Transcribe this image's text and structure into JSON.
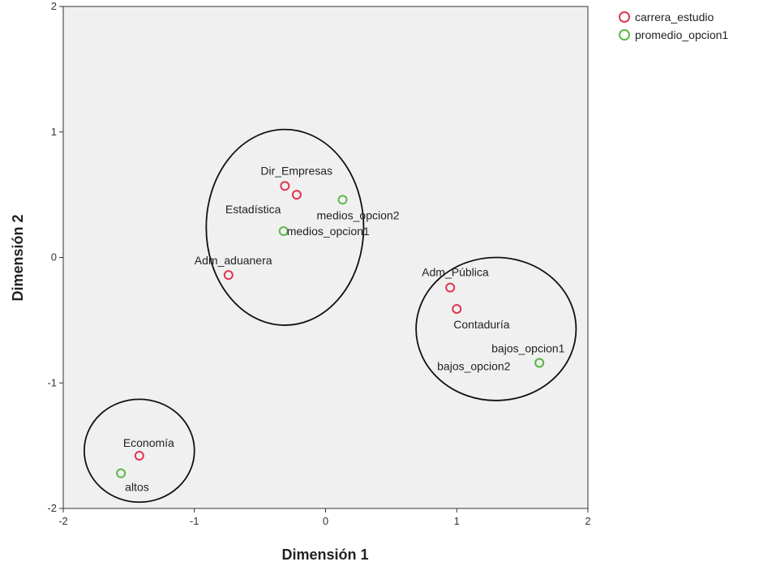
{
  "chart_data": {
    "type": "scatter",
    "xlabel": "Dimensión 1",
    "ylabel": "Dimensión 2",
    "xlim": [
      -2,
      2
    ],
    "ylim": [
      -2,
      2
    ],
    "xticks": [
      -2,
      -1,
      0,
      1,
      2
    ],
    "yticks": [
      -2,
      -1,
      0,
      1,
      2
    ],
    "grid": false,
    "legend_position": "top-right",
    "series": [
      {
        "name": "carrera_estudio",
        "color": "#e0354f",
        "points": [
          {
            "label": "Dir_Empresas",
            "x": -0.31,
            "y": 0.57
          },
          {
            "label": "Estadística",
            "x": -0.22,
            "y": 0.5
          },
          {
            "label": "Adm_aduanera",
            "x": -0.74,
            "y": -0.14
          },
          {
            "label": "Adm_Pública",
            "x": 0.95,
            "y": -0.24
          },
          {
            "label": "Contaduría",
            "x": 1.0,
            "y": -0.41
          },
          {
            "label": "Economía",
            "x": -1.42,
            "y": -1.58
          }
        ]
      },
      {
        "name": "promedio_opcion1",
        "color": "#5cb84a",
        "points": [
          {
            "label": "medios_opcion2",
            "x": 0.13,
            "y": 0.46
          },
          {
            "label": "medios_opcion1",
            "x": -0.32,
            "y": 0.21
          },
          {
            "label": "bajos_opcion1",
            "x": 1.63,
            "y": -0.84
          },
          {
            "label": "bajos_opcion2",
            "x": 1.63,
            "y": -0.84
          },
          {
            "label": "altos",
            "x": -1.56,
            "y": -1.72
          }
        ]
      }
    ],
    "annotations": [
      {
        "type": "ellipse",
        "cx": -0.31,
        "cy": 0.24,
        "rx": 0.6,
        "ry": 0.78
      },
      {
        "type": "ellipse",
        "cx": 1.3,
        "cy": -0.57,
        "rx": 0.61,
        "ry": 0.57
      },
      {
        "type": "ellipse",
        "cx": -1.42,
        "cy": -1.54,
        "rx": 0.42,
        "ry": 0.41
      }
    ]
  }
}
